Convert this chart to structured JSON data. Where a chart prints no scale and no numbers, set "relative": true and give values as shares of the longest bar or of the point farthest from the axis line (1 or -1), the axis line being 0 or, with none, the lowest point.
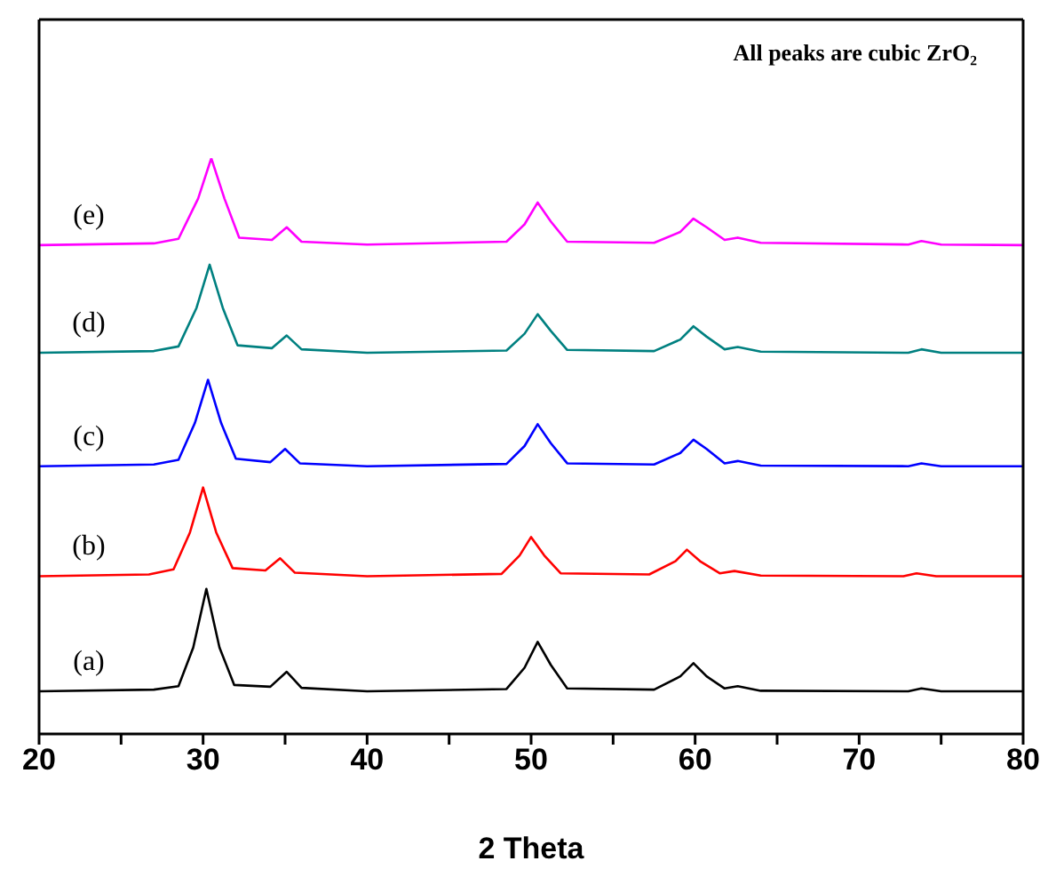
{
  "chart_data": {
    "type": "line",
    "relative": true,
    "xlabel": "2 Theta",
    "annotations": [
      "All peaks are cubic ZrO₂"
    ],
    "xlim": [
      20,
      80
    ],
    "xticks": [
      20,
      {
        "value": 25,
        "label": null
      },
      30,
      {
        "value": 35,
        "label": null
      },
      40,
      {
        "value": 45,
        "label": null
      },
      50,
      {
        "value": 55,
        "label": null
      },
      60,
      {
        "value": 65,
        "label": null
      },
      70,
      {
        "value": 75,
        "label": null
      },
      80
    ],
    "grid": false,
    "legend": false,
    "marker": "none",
    "line_style": "solid",
    "series": [
      {
        "name": "(a)",
        "color": "#000000",
        "x": [
          20,
          27,
          28.5,
          29.4,
          30.2,
          31,
          31.9,
          34.1,
          35.1,
          36,
          40,
          48.5,
          49.6,
          50.4,
          51.2,
          52.2,
          57.5,
          59.1,
          59.9,
          60.7,
          61.8,
          62.6,
          64,
          73,
          73.8,
          75,
          80
        ],
        "values": [
          0.074,
          0.077,
          0.083,
          0.15,
          0.252,
          0.15,
          0.085,
          0.082,
          0.108,
          0.08,
          0.074,
          0.078,
          0.115,
          0.16,
          0.12,
          0.079,
          0.077,
          0.1,
          0.123,
          0.1,
          0.079,
          0.083,
          0.075,
          0.074,
          0.079,
          0.074,
          0.074
        ]
      },
      {
        "name": "(b)",
        "color": "#ff0000",
        "x": [
          20,
          26.7,
          28.2,
          29.2,
          30,
          30.8,
          31.8,
          33.8,
          34.7,
          35.6,
          40,
          48.2,
          49.3,
          50,
          50.8,
          51.8,
          57.2,
          58.8,
          59.5,
          60.3,
          61.5,
          62.4,
          64,
          72.7,
          73.5,
          74.7,
          80
        ],
        "values": [
          0.274,
          0.277,
          0.286,
          0.35,
          0.428,
          0.35,
          0.288,
          0.284,
          0.305,
          0.28,
          0.274,
          0.278,
          0.31,
          0.342,
          0.31,
          0.279,
          0.277,
          0.3,
          0.32,
          0.3,
          0.279,
          0.283,
          0.275,
          0.274,
          0.279,
          0.274,
          0.274
        ]
      },
      {
        "name": "(c)",
        "color": "#0000ff",
        "x": [
          20,
          27,
          28.5,
          29.5,
          30.3,
          31.1,
          32,
          34.1,
          35,
          35.9,
          40,
          48.5,
          49.6,
          50.4,
          51.2,
          52.2,
          57.5,
          59.1,
          59.9,
          60.7,
          61.8,
          62.6,
          64,
          73,
          73.8,
          75,
          80
        ],
        "values": [
          0.465,
          0.468,
          0.476,
          0.54,
          0.615,
          0.54,
          0.478,
          0.472,
          0.495,
          0.47,
          0.465,
          0.469,
          0.5,
          0.538,
          0.505,
          0.47,
          0.468,
          0.488,
          0.511,
          0.495,
          0.47,
          0.474,
          0.466,
          0.465,
          0.47,
          0.465,
          0.465
        ]
      },
      {
        "name": "(d)",
        "color": "#008080",
        "x": [
          20,
          27,
          28.5,
          29.6,
          30.4,
          31.2,
          32.1,
          34.2,
          35.1,
          36,
          40,
          48.5,
          49.6,
          50.4,
          51.2,
          52.2,
          57.5,
          59.1,
          59.9,
          60.7,
          61.8,
          62.6,
          64,
          73,
          73.8,
          75,
          80
        ],
        "values": [
          0.662,
          0.665,
          0.673,
          0.74,
          0.815,
          0.74,
          0.675,
          0.67,
          0.692,
          0.668,
          0.662,
          0.666,
          0.695,
          0.729,
          0.7,
          0.667,
          0.665,
          0.685,
          0.708,
          0.69,
          0.668,
          0.672,
          0.664,
          0.662,
          0.668,
          0.662,
          0.662
        ]
      },
      {
        "name": "(e)",
        "color": "#ff00ff",
        "x": [
          20,
          27,
          28.5,
          29.7,
          30.5,
          31.3,
          32.2,
          34.2,
          35.1,
          36,
          40,
          48.5,
          49.6,
          50.4,
          51.2,
          52.2,
          57.5,
          59.1,
          59.9,
          60.7,
          61.8,
          62.6,
          64,
          73,
          73.8,
          75,
          80
        ],
        "values": [
          0.849,
          0.852,
          0.86,
          0.93,
          1,
          0.93,
          0.862,
          0.858,
          0.88,
          0.855,
          0.85,
          0.855,
          0.885,
          0.923,
          0.89,
          0.855,
          0.853,
          0.872,
          0.895,
          0.88,
          0.858,
          0.862,
          0.853,
          0.85,
          0.856,
          0.85,
          0.849
        ]
      }
    ]
  }
}
